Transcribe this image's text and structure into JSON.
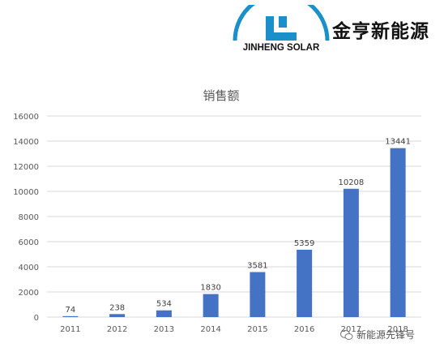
{
  "brand": {
    "logo_text": "JINHENG SOLAR",
    "name_cn": "金亨新能源",
    "logo_color": "#1a8fc9"
  },
  "watermark": {
    "text": "新能源先锋号",
    "icon": "wechat-icon"
  },
  "chart_data": {
    "type": "bar",
    "title": "销售额",
    "xlabel": "",
    "ylabel": "",
    "categories": [
      "2011",
      "2012",
      "2013",
      "2014",
      "2015",
      "2016",
      "2017",
      "2018"
    ],
    "series": [
      {
        "values": [
          74,
          238,
          534,
          1830,
          3581,
          5359,
          10208,
          13441
        ]
      }
    ],
    "data_labels": [
      "74",
      "238",
      "534",
      "1830",
      "3581",
      "5359",
      "10208",
      "13441"
    ],
    "yticks": [
      "0",
      "2000",
      "4000",
      "6000",
      "8000",
      "10000",
      "12000",
      "14000",
      "16000"
    ],
    "ylim": [
      0,
      16000
    ],
    "grid": true,
    "legend": "none",
    "bar_color": "#4472c4",
    "grid_color": "#d9d9d9"
  }
}
